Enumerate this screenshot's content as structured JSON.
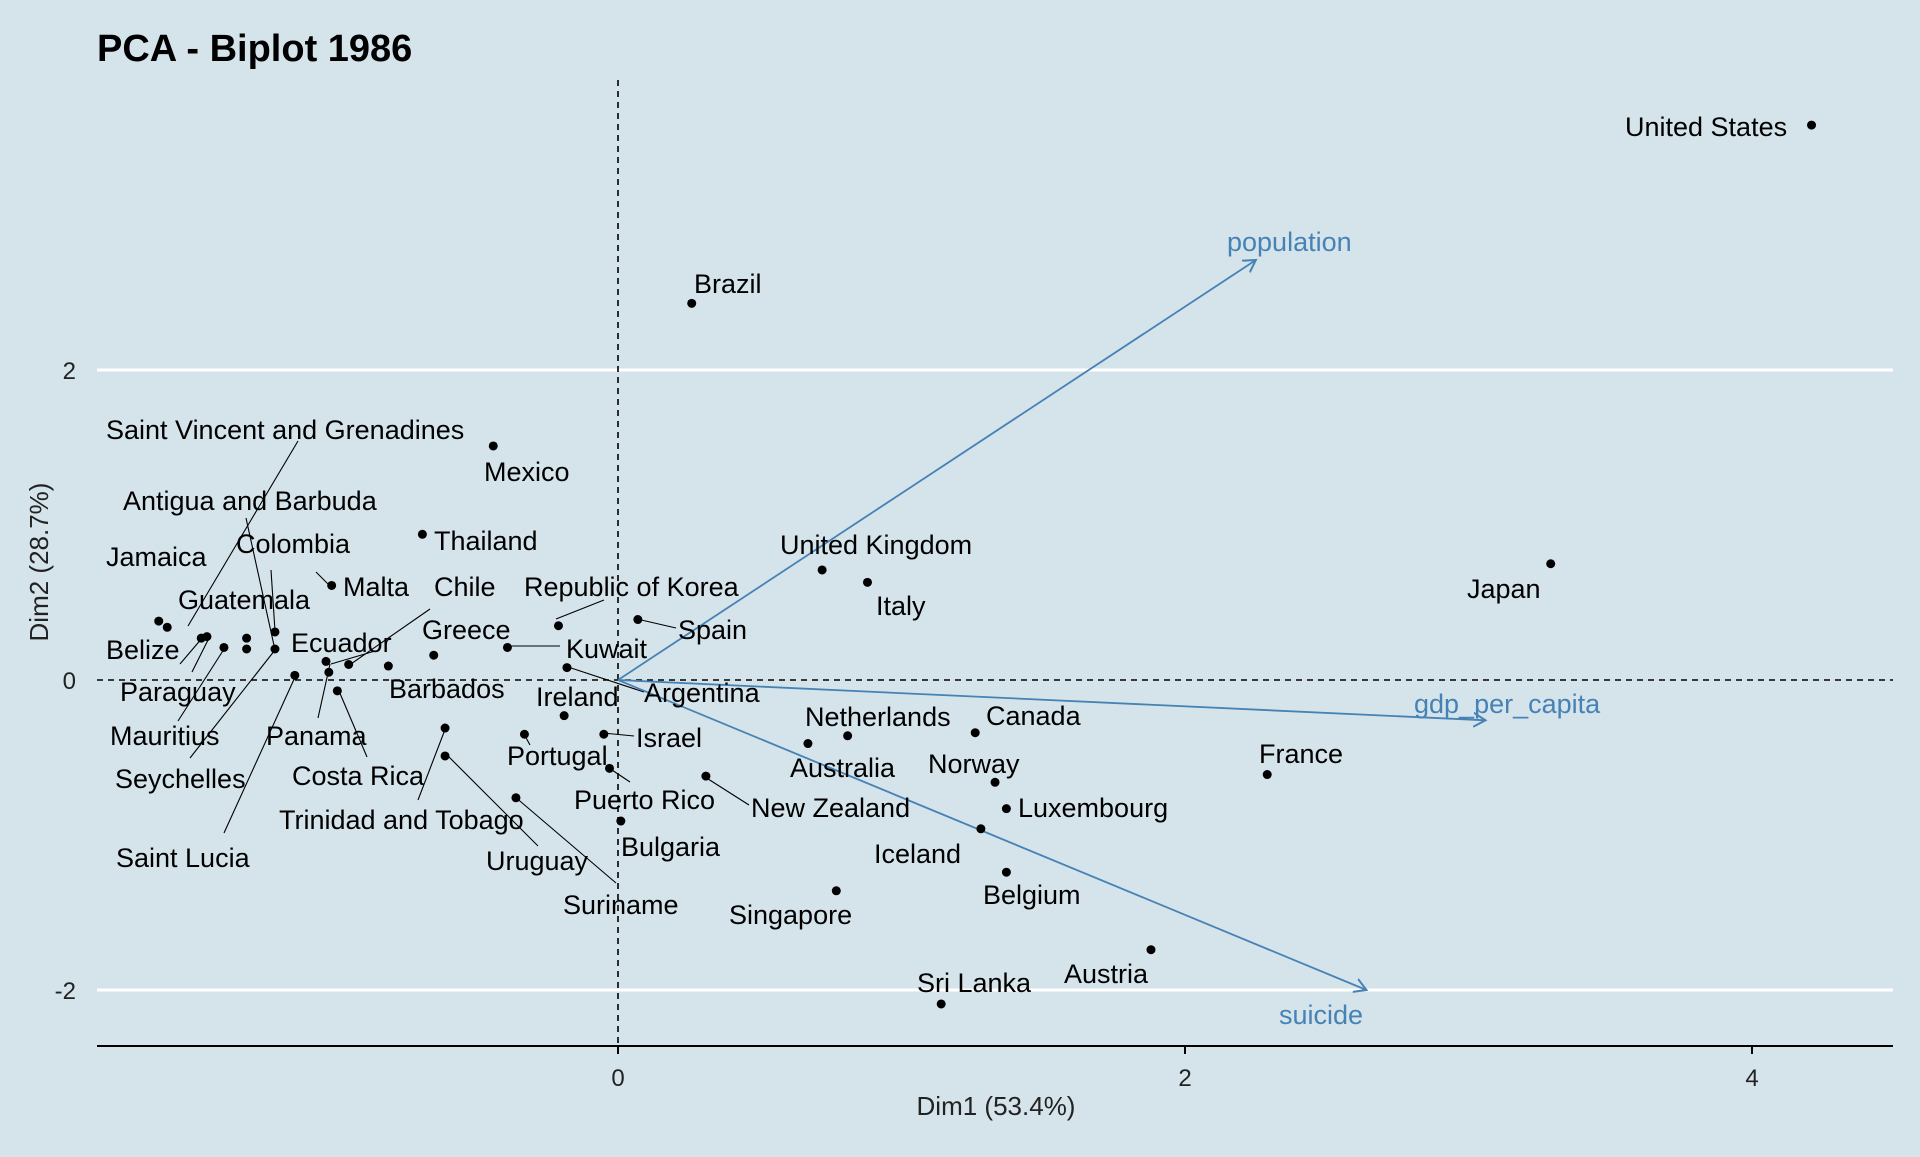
{
  "chart_data": {
    "type": "scatter",
    "title": "PCA - Biplot 1986",
    "xlabel": "Dim1 (53.4%)",
    "ylabel": "Dim2 (28.7%)",
    "xlim": [
      -1.83,
      4.5
    ],
    "ylim": [
      -2.37,
      3.85
    ],
    "xticks": [
      "0",
      "2",
      "4"
    ],
    "yticks": [
      "-2",
      "0",
      "2"
    ],
    "grid": "horizontal major lines",
    "colors": {
      "points": "#000000",
      "arrows": "#4682b4",
      "background": "#d5e4eb",
      "grid": "#ffffff"
    },
    "points": [
      {
        "name": "United States",
        "x": 4.21,
        "y": 3.58
      },
      {
        "name": "Brazil",
        "x": 0.26,
        "y": 2.43
      },
      {
        "name": "Mexico",
        "x": -0.44,
        "y": 1.51
      },
      {
        "name": "Thailand",
        "x": -0.69,
        "y": 0.94
      },
      {
        "name": "United Kingdom",
        "x": 0.72,
        "y": 0.71
      },
      {
        "name": "Italy",
        "x": 0.88,
        "y": 0.63
      },
      {
        "name": "Japan",
        "x": 3.29,
        "y": 0.75
      },
      {
        "name": "Spain",
        "x": 0.07,
        "y": 0.39
      },
      {
        "name": "Republic of Korea",
        "x": -0.21,
        "y": 0.35
      },
      {
        "name": "Kuwait",
        "x": -0.39,
        "y": 0.21
      },
      {
        "name": "Greece",
        "x": -0.65,
        "y": 0.16
      },
      {
        "name": "Barbados",
        "x": -0.81,
        "y": 0.09
      },
      {
        "name": "Chile",
        "x": -0.95,
        "y": 0.1
      },
      {
        "name": "Malta",
        "x": -1.01,
        "y": 0.61
      },
      {
        "name": "Ecuador",
        "x": -1.02,
        "y": 0.05
      },
      {
        "name": "Panama",
        "x": -1.03,
        "y": 0.12
      },
      {
        "name": "Costa Rica",
        "x": -0.99,
        "y": -0.07
      },
      {
        "name": "Colombia",
        "x": -1.21,
        "y": 0.31
      },
      {
        "name": "Antigua and Barbuda",
        "x": -1.21,
        "y": 0.2
      },
      {
        "name": "Saint Vincent and Grenadines",
        "x": -1.59,
        "y": 0.34
      },
      {
        "name": "Jamaica",
        "x": -1.62,
        "y": 0.38
      },
      {
        "name": "Guatemala",
        "x": -1.31,
        "y": 0.27
      },
      {
        "name": "Belize",
        "x": -1.47,
        "y": 0.27
      },
      {
        "name": "Paraguay",
        "x": -1.45,
        "y": 0.28
      },
      {
        "name": "Mauritius",
        "x": -1.39,
        "y": 0.21
      },
      {
        "name": "Seychelles",
        "x": -1.31,
        "y": 0.2
      },
      {
        "name": "Saint Lucia",
        "x": -1.14,
        "y": 0.03
      },
      {
        "name": "Trinidad and Tobago",
        "x": -0.61,
        "y": -0.31
      },
      {
        "name": "Uruguay",
        "x": -0.61,
        "y": -0.49
      },
      {
        "name": "Suriname",
        "x": -0.36,
        "y": -0.76
      },
      {
        "name": "Ireland",
        "x": -0.18,
        "y": 0.08
      },
      {
        "name": "Argentina",
        "x": -0.19,
        "y": -0.23
      },
      {
        "name": "Portugal",
        "x": -0.33,
        "y": -0.35
      },
      {
        "name": "Israel",
        "x": -0.05,
        "y": -0.35
      },
      {
        "name": "Puerto Rico",
        "x": -0.03,
        "y": -0.57
      },
      {
        "name": "Bulgaria",
        "x": 0.01,
        "y": -0.91
      },
      {
        "name": "New Zealand",
        "x": 0.31,
        "y": -0.62
      },
      {
        "name": "Netherlands",
        "x": 0.67,
        "y": -0.41
      },
      {
        "name": "Australia",
        "x": 0.81,
        "y": -0.36
      },
      {
        "name": "Canada",
        "x": 1.26,
        "y": -0.34
      },
      {
        "name": "Norway",
        "x": 1.33,
        "y": -0.66
      },
      {
        "name": "Luxembourg",
        "x": 1.37,
        "y": -0.83
      },
      {
        "name": "Iceland",
        "x": 1.28,
        "y": -0.96
      },
      {
        "name": "Belgium",
        "x": 1.37,
        "y": -1.24
      },
      {
        "name": "Singapore",
        "x": 0.77,
        "y": -1.36
      },
      {
        "name": "France",
        "x": 2.29,
        "y": -0.61
      },
      {
        "name": "Austria",
        "x": 1.88,
        "y": -1.74
      },
      {
        "name": "Sri Lanka",
        "x": 1.14,
        "y": -2.09
      }
    ],
    "arrows": [
      {
        "name": "population",
        "x": 2.25,
        "y": 2.71
      },
      {
        "name": "gdp_per_capita",
        "x": 3.06,
        "y": -0.26
      },
      {
        "name": "suicide",
        "x": 2.64,
        "y": -2.0
      }
    ]
  }
}
